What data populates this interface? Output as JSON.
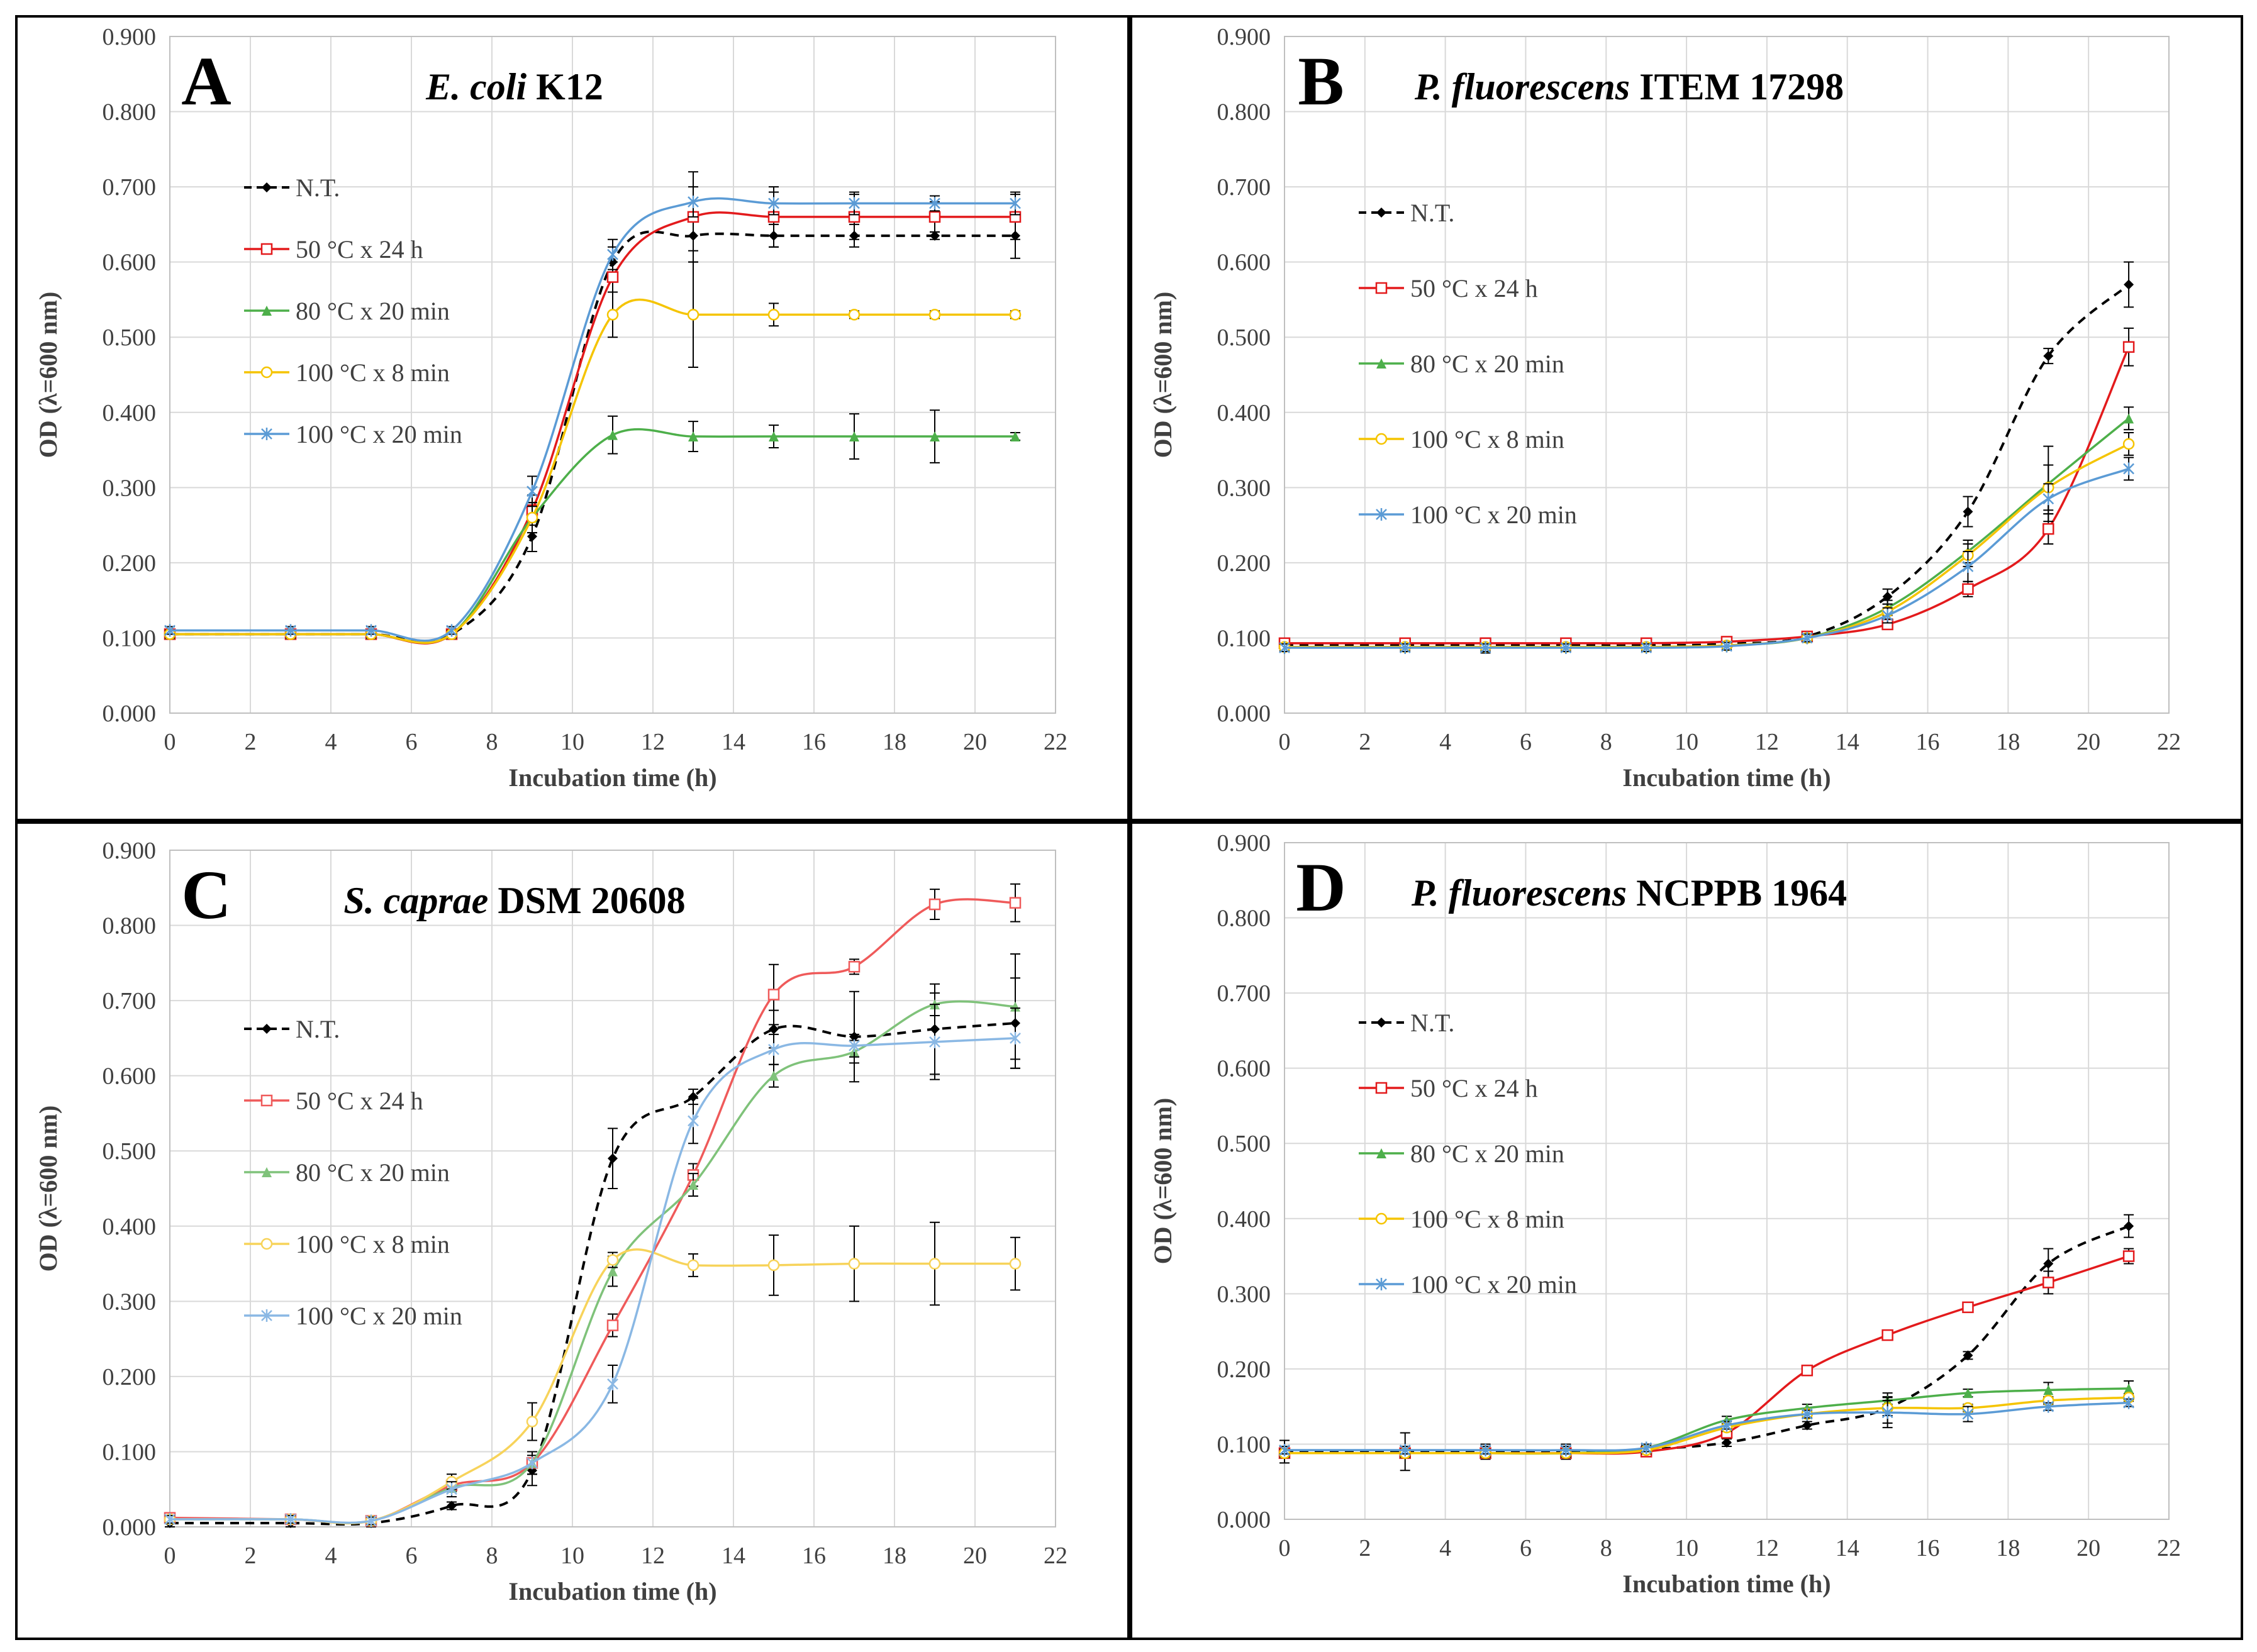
{
  "chart_data": [
    {
      "panel": "A",
      "type": "line",
      "title": "E. coli K12",
      "title_italic": "E. coli",
      "title_plain": " K12",
      "xlabel": "Incubation time (h)",
      "ylabel": "OD (λ=600 nm)",
      "xlim": [
        0,
        22
      ],
      "ylim": [
        0,
        0.9
      ],
      "xticks": [
        "0",
        "2",
        "4",
        "6",
        "8",
        "10",
        "12",
        "14",
        "16",
        "18",
        "20",
        "22"
      ],
      "yticks": [
        "0.000",
        "0.100",
        "0.200",
        "0.300",
        "0.400",
        "0.500",
        "0.600",
        "0.700",
        "0.800",
        "0.900"
      ],
      "x": [
        0,
        3,
        5,
        7,
        9,
        11,
        13,
        15,
        17,
        19,
        21
      ],
      "series": [
        {
          "name": "N.T.",
          "color": "#000000",
          "dashed": true,
          "marker": "diamond",
          "values": [
            0.105,
            0.105,
            0.105,
            0.105,
            0.235,
            0.6,
            0.635,
            0.635,
            0.635,
            0.635,
            0.635
          ],
          "err": [
            0.005,
            0.005,
            0.005,
            0.005,
            0.02,
            0.02,
            0.02,
            0.015,
            0.015,
            0.005,
            0.03
          ]
        },
        {
          "name": "50 °C x 24 h",
          "color": "#e31a1c",
          "dashed": false,
          "marker": "square",
          "values": [
            0.105,
            0.105,
            0.105,
            0.105,
            0.27,
            0.58,
            0.66,
            0.66,
            0.66,
            0.66,
            0.66
          ],
          "err": [
            0.005,
            0.005,
            0.005,
            0.005,
            0.02,
            0.02,
            0.06,
            0.04,
            0.03,
            0.02,
            0.03
          ]
        },
        {
          "name": "80 °C x 20 min",
          "color": "#4daf4a",
          "dashed": false,
          "marker": "triangle",
          "values": [
            0.105,
            0.105,
            0.105,
            0.105,
            0.26,
            0.37,
            0.368,
            0.368,
            0.368,
            0.368,
            0.368
          ],
          "err": [
            0.005,
            0.005,
            0.005,
            0.005,
            0.02,
            0.025,
            0.02,
            0.015,
            0.03,
            0.035,
            0.005
          ]
        },
        {
          "name": "100 °C x 8 min",
          "color": "#f5c400",
          "dashed": false,
          "marker": "circle",
          "values": [
            0.105,
            0.105,
            0.105,
            0.105,
            0.26,
            0.53,
            0.53,
            0.53,
            0.53,
            0.53,
            0.53
          ],
          "err": [
            0.005,
            0.005,
            0.005,
            0.005,
            0.02,
            0.03,
            0.07,
            0.015,
            0.005,
            0.005,
            0.005
          ]
        },
        {
          "name": "100 °C x 20 min",
          "color": "#5b9bd5",
          "dashed": false,
          "marker": "star",
          "values": [
            0.11,
            0.11,
            0.11,
            0.11,
            0.295,
            0.61,
            0.68,
            0.678,
            0.678,
            0.678,
            0.678
          ],
          "err": [
            0.005,
            0.005,
            0.005,
            0.005,
            0.02,
            0.02,
            0.02,
            0.015,
            0.015,
            0.01,
            0.015
          ]
        }
      ]
    },
    {
      "panel": "B",
      "type": "line",
      "title": "P. fluorescens ITEM 17298",
      "title_italic": "P. fluorescens",
      "title_plain": " ITEM 17298",
      "xlabel": "Incubation time (h)",
      "ylabel": "OD (λ=600 nm)",
      "xlim": [
        0,
        22
      ],
      "ylim": [
        0,
        0.9
      ],
      "xticks": [
        "0",
        "2",
        "4",
        "6",
        "8",
        "10",
        "12",
        "14",
        "16",
        "18",
        "20",
        "22"
      ],
      "yticks": [
        "0.000",
        "0.100",
        "0.200",
        "0.300",
        "0.400",
        "0.500",
        "0.600",
        "0.700",
        "0.800",
        "0.900"
      ],
      "x": [
        0,
        3,
        5,
        7,
        9,
        11,
        13,
        15,
        17,
        19,
        21
      ],
      "series": [
        {
          "name": "N.T.",
          "color": "#000000",
          "dashed": true,
          "marker": "diamond",
          "values": [
            0.09,
            0.09,
            0.09,
            0.09,
            0.09,
            0.092,
            0.102,
            0.155,
            0.268,
            0.475,
            0.57
          ],
          "err": [
            0.005,
            0.005,
            0.01,
            0.005,
            0.005,
            0.005,
            0.005,
            0.01,
            0.02,
            0.01,
            0.03
          ]
        },
        {
          "name": "50 °C x 24 h",
          "color": "#e31a1c",
          "dashed": false,
          "marker": "square",
          "values": [
            0.093,
            0.093,
            0.093,
            0.093,
            0.093,
            0.095,
            0.102,
            0.118,
            0.165,
            0.245,
            0.487
          ],
          "err": [
            0.005,
            0.005,
            0.005,
            0.005,
            0.005,
            0.005,
            0.005,
            0.005,
            0.01,
            0.02,
            0.025
          ]
        },
        {
          "name": "80 °C x 20 min",
          "color": "#4daf4a",
          "dashed": false,
          "marker": "triangle",
          "values": [
            0.088,
            0.088,
            0.088,
            0.088,
            0.088,
            0.09,
            0.1,
            0.14,
            0.215,
            0.305,
            0.392
          ],
          "err": [
            0.005,
            0.005,
            0.005,
            0.005,
            0.005,
            0.005,
            0.005,
            0.01,
            0.015,
            0.05,
            0.015
          ]
        },
        {
          "name": "100 °C x 8 min",
          "color": "#f5c400",
          "dashed": false,
          "marker": "circle",
          "values": [
            0.088,
            0.088,
            0.088,
            0.088,
            0.088,
            0.09,
            0.1,
            0.135,
            0.21,
            0.3,
            0.358
          ],
          "err": [
            0.005,
            0.005,
            0.005,
            0.005,
            0.005,
            0.005,
            0.005,
            0.01,
            0.015,
            0.03,
            0.015
          ]
        },
        {
          "name": "100 °C x 20 min",
          "color": "#5b9bd5",
          "dashed": false,
          "marker": "star",
          "values": [
            0.087,
            0.087,
            0.087,
            0.087,
            0.087,
            0.089,
            0.1,
            0.13,
            0.195,
            0.285,
            0.325
          ],
          "err": [
            0.005,
            0.005,
            0.005,
            0.005,
            0.005,
            0.005,
            0.005,
            0.01,
            0.02,
            0.02,
            0.015
          ]
        }
      ]
    },
    {
      "panel": "C",
      "type": "line",
      "title": "S. caprae DSM 20608",
      "title_italic": "S. caprae",
      "title_plain": " DSM 20608",
      "xlabel": "Incubation time (h)",
      "ylabel": "OD (λ=600 nm)",
      "xlim": [
        0,
        22
      ],
      "ylim": [
        0,
        0.9
      ],
      "xticks": [
        "0",
        "2",
        "4",
        "6",
        "8",
        "10",
        "12",
        "14",
        "16",
        "18",
        "20",
        "22"
      ],
      "yticks": [
        "0.000",
        "0.100",
        "0.200",
        "0.300",
        "0.400",
        "0.500",
        "0.600",
        "0.700",
        "0.800",
        "0.900"
      ],
      "x": [
        0,
        3,
        5,
        7,
        9,
        11,
        13,
        15,
        17,
        19,
        21
      ],
      "series": [
        {
          "name": "N.T.",
          "color": "#000000",
          "dashed": true,
          "marker": "diamond",
          "values": [
            0.005,
            0.005,
            0.005,
            0.028,
            0.075,
            0.49,
            0.572,
            0.662,
            0.652,
            0.662,
            0.67
          ],
          "err": [
            0.005,
            0.005,
            0.005,
            0.005,
            0.02,
            0.04,
            0.01,
            0.025,
            0.06,
            0.06,
            0.06
          ]
        },
        {
          "name": "50 °C x 24 h",
          "color": "#ef5a5a",
          "dashed": false,
          "marker": "square",
          "values": [
            0.012,
            0.01,
            0.008,
            0.055,
            0.085,
            0.268,
            0.468,
            0.708,
            0.745,
            0.828,
            0.83
          ],
          "err": [
            0.005,
            0.005,
            0.005,
            0.005,
            0.015,
            0.015,
            0.015,
            0.04,
            0.01,
            0.02,
            0.025
          ]
        },
        {
          "name": "80 °C x 20 min",
          "color": "#7fc27a",
          "dashed": false,
          "marker": "triangle",
          "values": [
            0.01,
            0.01,
            0.008,
            0.052,
            0.085,
            0.34,
            0.455,
            0.6,
            0.632,
            0.695,
            0.692
          ],
          "err": [
            0.005,
            0.005,
            0.005,
            0.005,
            0.015,
            0.02,
            0.015,
            0.015,
            0.015,
            0.015,
            0.07
          ]
        },
        {
          "name": "100 °C x 8 min",
          "color": "#f7d35a",
          "dashed": false,
          "marker": "circle",
          "values": [
            0.01,
            0.01,
            0.008,
            0.06,
            0.14,
            0.355,
            0.348,
            0.348,
            0.35,
            0.35,
            0.35
          ],
          "err": [
            0.005,
            0.005,
            0.005,
            0.01,
            0.025,
            0.01,
            0.015,
            0.04,
            0.05,
            0.055,
            0.035
          ]
        },
        {
          "name": "100 °C x 20 min",
          "color": "#8ab8e4",
          "dashed": false,
          "marker": "star",
          "values": [
            0.01,
            0.01,
            0.008,
            0.05,
            0.085,
            0.19,
            0.54,
            0.635,
            0.64,
            0.645,
            0.65
          ],
          "err": [
            0.005,
            0.005,
            0.005,
            0.01,
            0.015,
            0.025,
            0.03,
            0.02,
            0.015,
            0.05,
            0.04
          ]
        }
      ]
    },
    {
      "panel": "D",
      "type": "line",
      "title": "P. fluorescens NCPPB 1964",
      "title_italic": "P. fluorescens",
      "title_plain": " NCPPB 1964",
      "xlabel": "Incubation time (h)",
      "ylabel": "OD (λ=600 nm)",
      "xlim": [
        0,
        22
      ],
      "ylim": [
        0,
        0.9
      ],
      "xticks": [
        "0",
        "2",
        "4",
        "6",
        "8",
        "10",
        "12",
        "14",
        "16",
        "18",
        "20",
        "22"
      ],
      "yticks": [
        "0.000",
        "0.100",
        "0.200",
        "0.300",
        "0.400",
        "0.500",
        "0.600",
        "0.700",
        "0.800",
        "0.900"
      ],
      "x": [
        0,
        3,
        5,
        7,
        9,
        11,
        13,
        15,
        17,
        19,
        21
      ],
      "series": [
        {
          "name": "N.T.",
          "color": "#000000",
          "dashed": true,
          "marker": "diamond",
          "values": [
            0.09,
            0.09,
            0.09,
            0.09,
            0.093,
            0.102,
            0.125,
            0.148,
            0.218,
            0.34,
            0.39
          ],
          "err": [
            0.015,
            0.025,
            0.01,
            0.01,
            0.005,
            0.005,
            0.005,
            0.02,
            0.005,
            0.02,
            0.015
          ]
        },
        {
          "name": "50 °C x 24 h",
          "color": "#e31a1c",
          "dashed": false,
          "marker": "square",
          "values": [
            0.088,
            0.088,
            0.088,
            0.088,
            0.09,
            0.115,
            0.198,
            0.245,
            0.282,
            0.315,
            0.35
          ],
          "err": [
            0.005,
            0.005,
            0.005,
            0.005,
            0.005,
            0.005,
            0.005,
            0.005,
            0.005,
            0.015,
            0.01
          ]
        },
        {
          "name": "80 °C x 20 min",
          "color": "#4daf4a",
          "dashed": false,
          "marker": "triangle",
          "values": [
            0.088,
            0.088,
            0.088,
            0.088,
            0.095,
            0.132,
            0.148,
            0.158,
            0.168,
            0.172,
            0.174
          ],
          "err": [
            0.005,
            0.005,
            0.005,
            0.005,
            0.005,
            0.005,
            0.005,
            0.005,
            0.005,
            0.01,
            0.01
          ]
        },
        {
          "name": "100 °C x 8 min",
          "color": "#f5c400",
          "dashed": false,
          "marker": "circle",
          "values": [
            0.088,
            0.088,
            0.088,
            0.088,
            0.092,
            0.122,
            0.14,
            0.148,
            0.148,
            0.158,
            0.162
          ],
          "err": [
            0.005,
            0.005,
            0.005,
            0.005,
            0.005,
            0.005,
            0.005,
            0.01,
            0.005,
            0.005,
            0.005
          ]
        },
        {
          "name": "100 °C x 20 min",
          "color": "#5b9bd5",
          "dashed": false,
          "marker": "star",
          "values": [
            0.092,
            0.092,
            0.092,
            0.092,
            0.095,
            0.125,
            0.14,
            0.142,
            0.14,
            0.15,
            0.155
          ],
          "err": [
            0.005,
            0.005,
            0.005,
            0.005,
            0.005,
            0.005,
            0.005,
            0.02,
            0.01,
            0.005,
            0.005
          ]
        }
      ]
    }
  ]
}
